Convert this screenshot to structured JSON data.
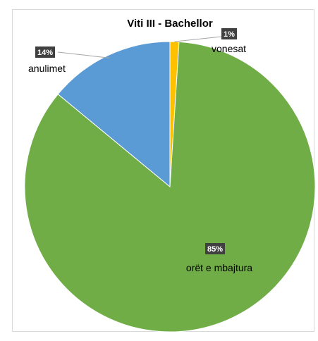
{
  "chart_data": {
    "type": "pie",
    "title": "Viti III - Bachellor",
    "slices": [
      {
        "label": "orët e mbajtura",
        "value": 85,
        "pct_label": "85%",
        "color": "#70ad47"
      },
      {
        "label": "anulimet",
        "value": 14,
        "pct_label": "14%",
        "color": "#5b9bd5"
      },
      {
        "label": "vonesat",
        "value": 1,
        "pct_label": "1%",
        "color": "#ffc000"
      }
    ],
    "legend": "none",
    "data_labels": "percent-with-category"
  }
}
